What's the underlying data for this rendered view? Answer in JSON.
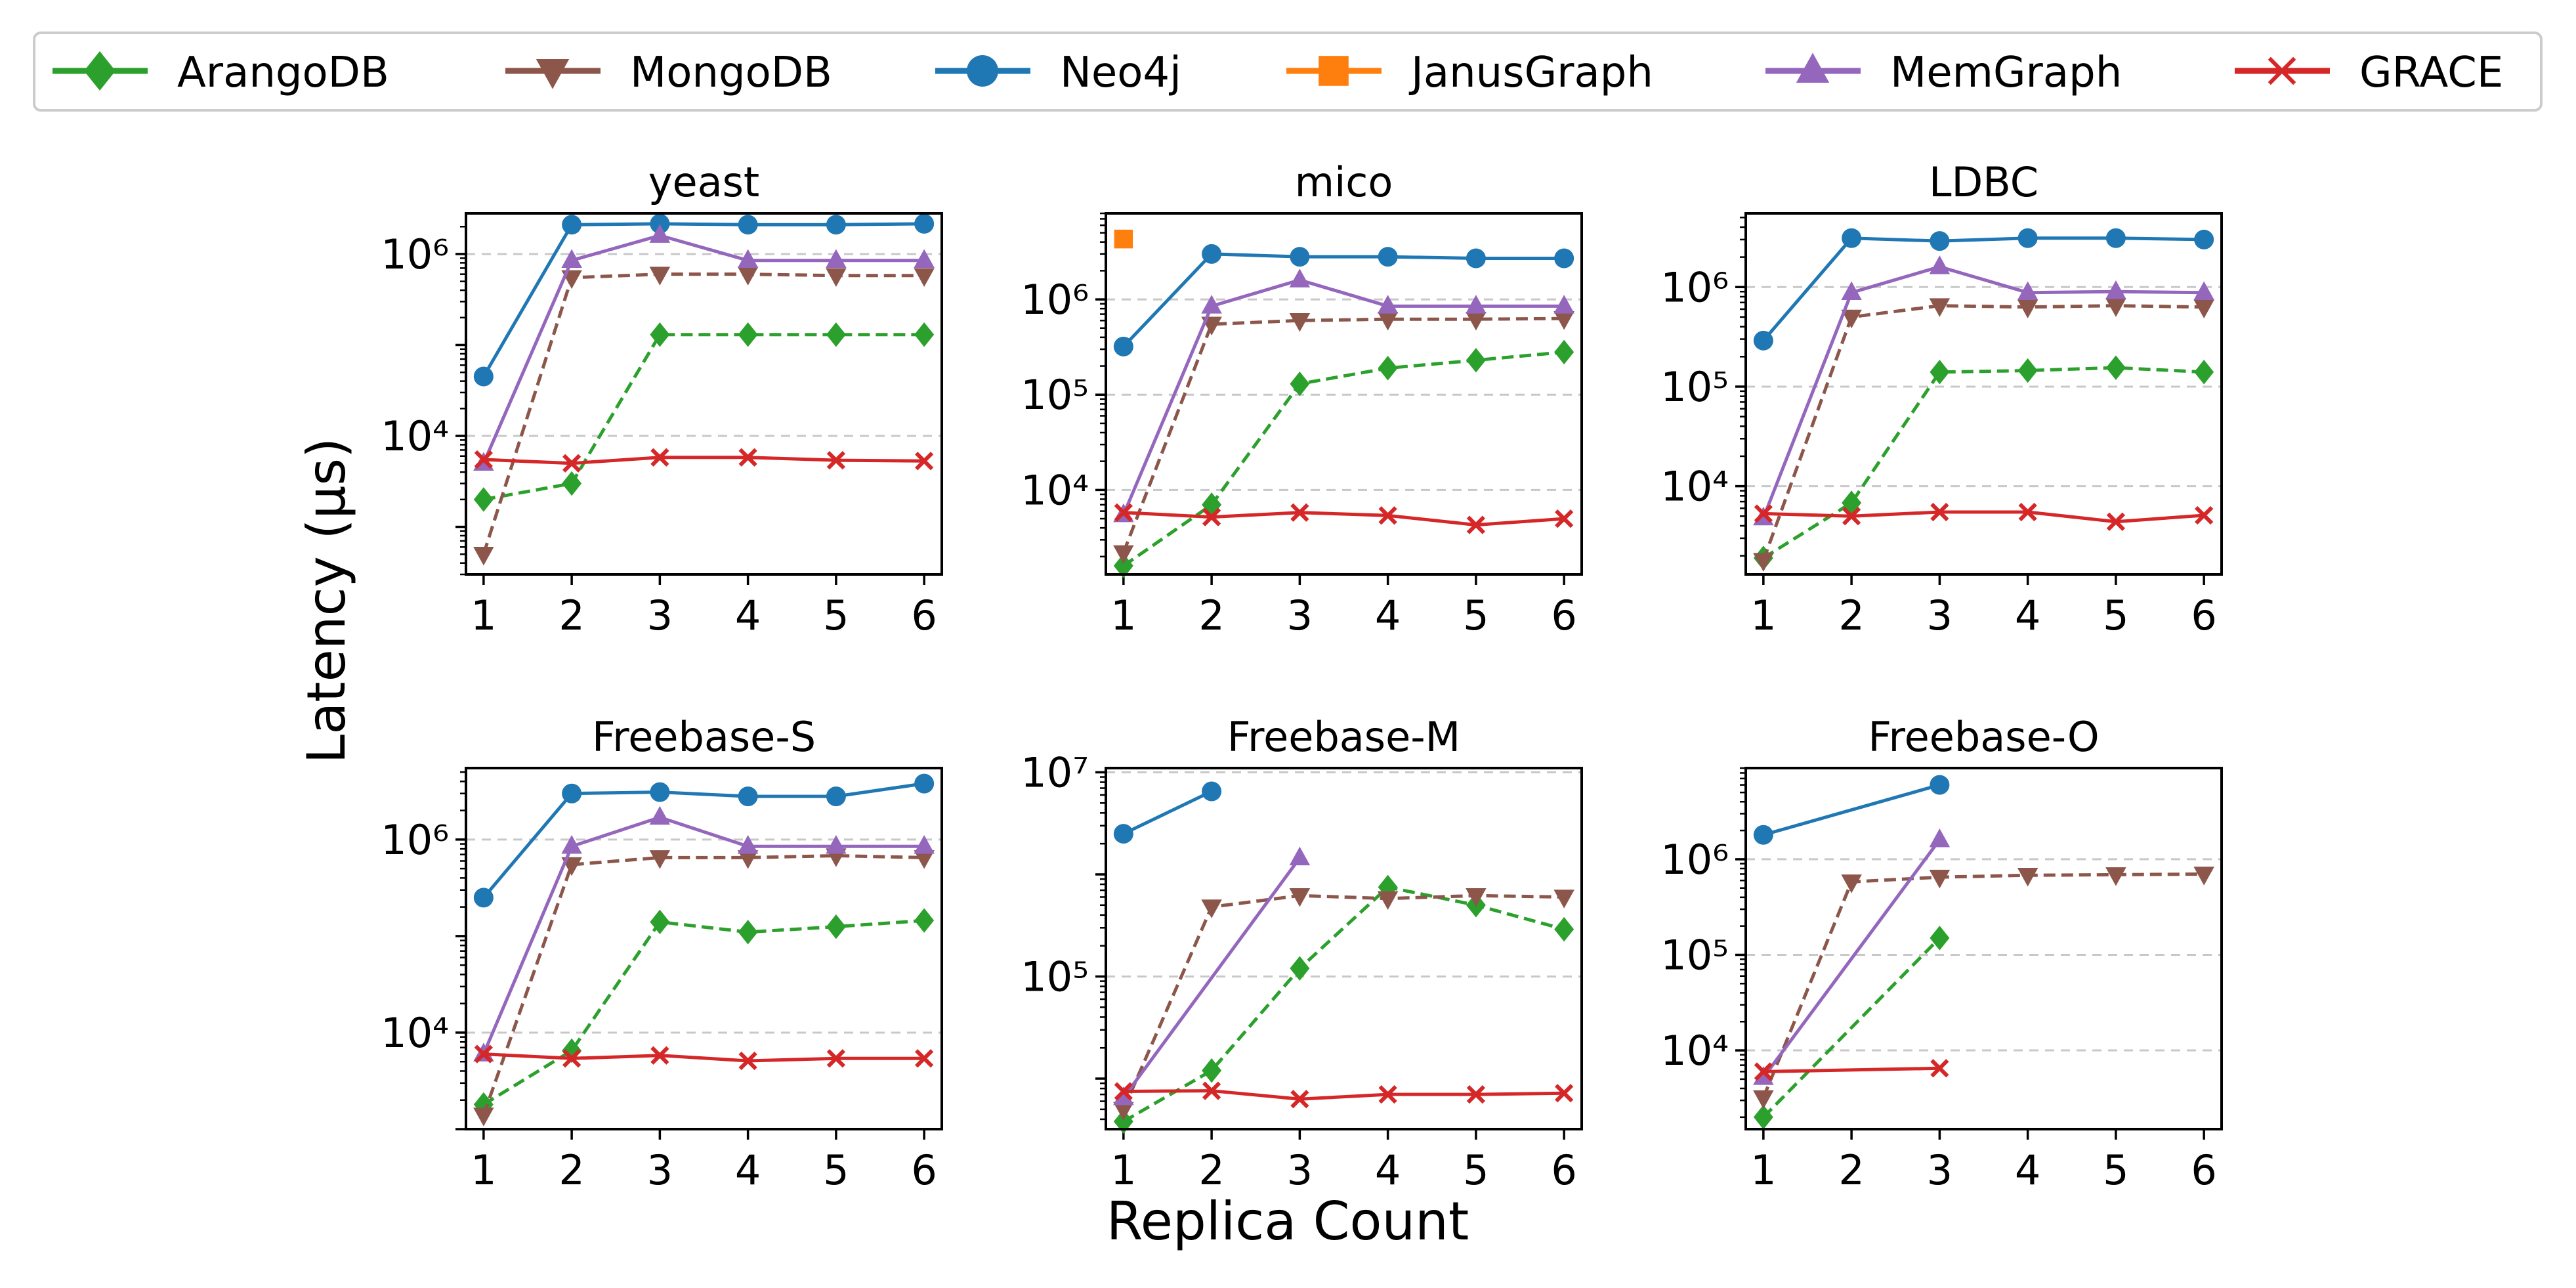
{
  "figure": {
    "ylabel": "Latency (μs)",
    "xlabel": "Replica Count"
  },
  "series_styles": [
    {
      "name": "ArangoDB",
      "color": "#2ca02c",
      "marker": "diamond",
      "dashed": true
    },
    {
      "name": "MongoDB",
      "color": "#8c564b",
      "marker": "triangle-down",
      "dashed": true
    },
    {
      "name": "Neo4j",
      "color": "#1f77b4",
      "marker": "circle",
      "dashed": false
    },
    {
      "name": "JanusGraph",
      "color": "#ff7f0e",
      "marker": "square",
      "dashed": false
    },
    {
      "name": "MemGraph",
      "color": "#9467bd",
      "marker": "triangle-up",
      "dashed": false
    },
    {
      "name": "GRACE",
      "color": "#d62728",
      "marker": "x",
      "dashed": false
    }
  ],
  "chart_data": [
    {
      "type": "line",
      "title": "yeast",
      "yscale": "log",
      "x": [
        1,
        2,
        3,
        4,
        5,
        6
      ],
      "ylim": [
        300,
        2800000
      ],
      "yticks": [
        {
          "value": 10000,
          "label": "10⁴"
        },
        {
          "value": 1000000,
          "label": "10⁶"
        }
      ],
      "grid": "y-major-dashed",
      "series": [
        {
          "name": "ArangoDB",
          "values": [
            2000,
            3000,
            130000,
            130000,
            130000,
            130000
          ]
        },
        {
          "name": "MongoDB",
          "values": [
            500,
            550000,
            600000,
            600000,
            580000,
            580000
          ]
        },
        {
          "name": "Neo4j",
          "values": [
            45000,
            2100000,
            2150000,
            2100000,
            2100000,
            2150000
          ]
        },
        {
          "name": "JanusGraph",
          "values": [
            null,
            null,
            null,
            null,
            null,
            null
          ]
        },
        {
          "name": "MemGraph",
          "values": [
            5000,
            850000,
            1600000,
            850000,
            850000,
            850000
          ]
        },
        {
          "name": "GRACE",
          "values": [
            5500,
            5000,
            5800,
            5800,
            5400,
            5300
          ]
        }
      ]
    },
    {
      "type": "line",
      "title": "mico",
      "yscale": "log",
      "x": [
        1,
        2,
        3,
        4,
        5,
        6
      ],
      "ylim": [
        1300,
        8000000
      ],
      "yticks": [
        {
          "value": 10000,
          "label": "10⁴"
        },
        {
          "value": 100000,
          "label": "10⁵"
        },
        {
          "value": 1000000,
          "label": "10⁶"
        }
      ],
      "grid": "y-major-dashed",
      "series": [
        {
          "name": "ArangoDB",
          "values": [
            1600,
            7000,
            130000,
            190000,
            230000,
            280000
          ]
        },
        {
          "name": "MongoDB",
          "values": [
            2200,
            550000,
            600000,
            620000,
            620000,
            630000
          ]
        },
        {
          "name": "Neo4j",
          "values": [
            320000,
            3000000,
            2800000,
            2800000,
            2700000,
            2700000
          ]
        },
        {
          "name": "JanusGraph",
          "values": [
            4300000,
            null,
            null,
            null,
            null,
            null
          ]
        },
        {
          "name": "MemGraph",
          "values": [
            5500,
            850000,
            1600000,
            850000,
            850000,
            850000
          ]
        },
        {
          "name": "GRACE",
          "values": [
            5800,
            5200,
            5800,
            5400,
            4300,
            5000
          ]
        }
      ]
    },
    {
      "type": "line",
      "title": "LDBC",
      "yscale": "log",
      "x": [
        1,
        2,
        3,
        4,
        5,
        6
      ],
      "ylim": [
        1300,
        5500000
      ],
      "yticks": [
        {
          "value": 10000,
          "label": "10⁴"
        },
        {
          "value": 100000,
          "label": "10⁵"
        },
        {
          "value": 1000000,
          "label": "10⁶"
        }
      ],
      "grid": "y-major-dashed",
      "series": [
        {
          "name": "ArangoDB",
          "values": [
            1900,
            6800,
            140000,
            145000,
            155000,
            140000
          ]
        },
        {
          "name": "MongoDB",
          "values": [
            1800,
            500000,
            650000,
            630000,
            650000,
            630000
          ]
        },
        {
          "name": "Neo4j",
          "values": [
            290000,
            3100000,
            2900000,
            3100000,
            3100000,
            3000000
          ]
        },
        {
          "name": "JanusGraph",
          "values": [
            null,
            null,
            null,
            null,
            null,
            null
          ]
        },
        {
          "name": "MemGraph",
          "values": [
            4800,
            880000,
            1600000,
            880000,
            900000,
            880000
          ]
        },
        {
          "name": "GRACE",
          "values": [
            5300,
            5000,
            5500,
            5500,
            4400,
            5100
          ]
        }
      ]
    },
    {
      "type": "line",
      "title": "Freebase-S",
      "yscale": "log",
      "x": [
        1,
        2,
        3,
        4,
        5,
        6
      ],
      "ylim": [
        1000,
        5500000
      ],
      "yticks": [
        {
          "value": 10000,
          "label": "10⁴"
        },
        {
          "value": 1000000,
          "label": "10⁶"
        }
      ],
      "grid": "y-major-dashed",
      "series": [
        {
          "name": "ArangoDB",
          "values": [
            1800,
            6500,
            140000,
            110000,
            125000,
            145000
          ]
        },
        {
          "name": "MongoDB",
          "values": [
            1400,
            550000,
            650000,
            650000,
            680000,
            650000
          ]
        },
        {
          "name": "Neo4j",
          "values": [
            250000,
            3000000,
            3100000,
            2800000,
            2800000,
            3800000
          ]
        },
        {
          "name": "JanusGraph",
          "values": [
            null,
            null,
            null,
            null,
            null,
            null
          ]
        },
        {
          "name": "MemGraph",
          "values": [
            6000,
            850000,
            1700000,
            850000,
            850000,
            850000
          ]
        },
        {
          "name": "GRACE",
          "values": [
            6000,
            5400,
            5800,
            5100,
            5400,
            5400
          ]
        }
      ]
    },
    {
      "type": "line",
      "title": "Freebase-M",
      "yscale": "log",
      "x": [
        1,
        2,
        3,
        4,
        5,
        6
      ],
      "ylim": [
        3200,
        11000000
      ],
      "yticks": [
        {
          "value": 100000,
          "label": "10⁵"
        },
        {
          "value": 10000000,
          "label": "10⁷"
        }
      ],
      "grid": "y-major-dashed",
      "series": [
        {
          "name": "ArangoDB",
          "values": [
            3800,
            12000,
            120000,
            750000,
            500000,
            290000
          ]
        },
        {
          "name": "MongoDB",
          "values": [
            5000,
            480000,
            620000,
            580000,
            620000,
            600000
          ]
        },
        {
          "name": "Neo4j",
          "values": [
            2500000,
            6500000,
            null,
            null,
            null,
            null
          ]
        },
        {
          "name": "JanusGraph",
          "values": [
            null,
            null,
            null,
            null,
            null,
            null
          ]
        },
        {
          "name": "MemGraph",
          "values": [
            6500,
            null,
            1450000,
            null,
            null,
            null
          ]
        },
        {
          "name": "GRACE",
          "values": [
            7500,
            7600,
            6300,
            7000,
            7000,
            7200
          ]
        }
      ]
    },
    {
      "type": "line",
      "title": "Freebase-O",
      "yscale": "log",
      "x": [
        1,
        2,
        3,
        4,
        5,
        6
      ],
      "ylim": [
        1500,
        9000000
      ],
      "yticks": [
        {
          "value": 10000,
          "label": "10⁴"
        },
        {
          "value": 100000,
          "label": "10⁵"
        },
        {
          "value": 1000000,
          "label": "10⁶"
        }
      ],
      "grid": "y-major-dashed",
      "series": [
        {
          "name": "ArangoDB",
          "values": [
            2000,
            null,
            150000,
            null,
            null,
            null
          ]
        },
        {
          "name": "MongoDB",
          "values": [
            3200,
            580000,
            650000,
            680000,
            690000,
            700000
          ]
        },
        {
          "name": "Neo4j",
          "values": [
            1800000,
            null,
            6000000,
            null,
            null,
            null
          ]
        },
        {
          "name": "JanusGraph",
          "values": [
            null,
            null,
            null,
            null,
            null,
            null
          ]
        },
        {
          "name": "MemGraph",
          "values": [
            5200,
            null,
            1600000,
            null,
            null,
            null
          ]
        },
        {
          "name": "GRACE",
          "values": [
            6000,
            null,
            6500,
            null,
            null,
            null
          ]
        }
      ]
    }
  ]
}
